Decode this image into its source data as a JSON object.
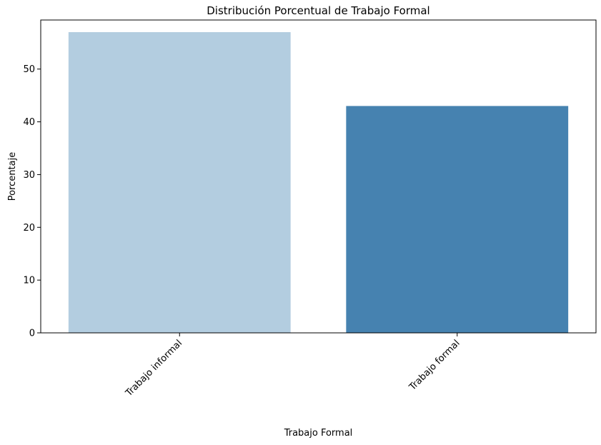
{
  "chart_data": {
    "type": "bar",
    "title": "Distribución Porcentual de Trabajo Formal",
    "xlabel": "Trabajo Formal",
    "ylabel": "Porcentaje",
    "categories": [
      "Trabajo informal",
      "Trabajo formal"
    ],
    "values": [
      57.0,
      43.0
    ],
    "colors": [
      "#b3cde0",
      "#4682b0"
    ],
    "ylim": [
      0,
      59.3
    ],
    "yticks": [
      0,
      10,
      20,
      30,
      40,
      50
    ],
    "grid": false,
    "legend": "none"
  }
}
